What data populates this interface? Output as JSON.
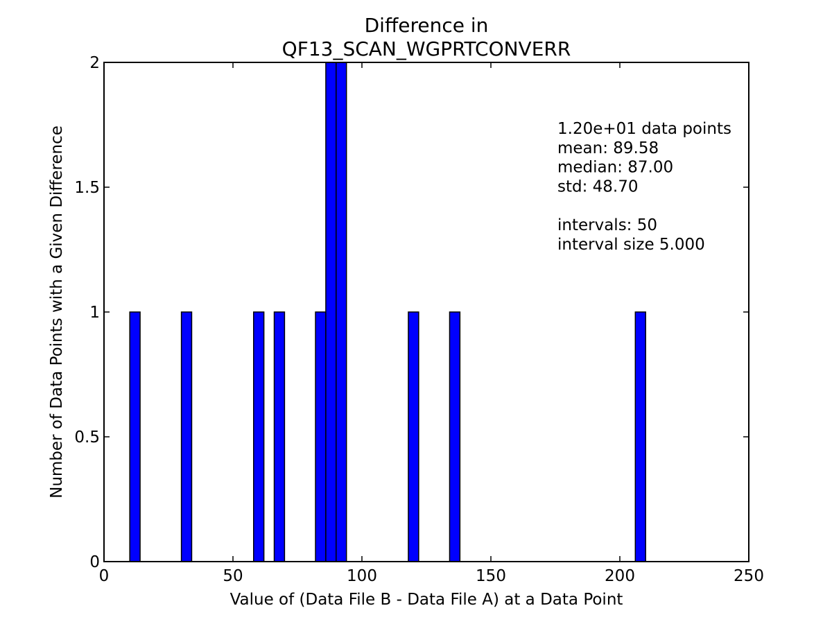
{
  "chart_data": {
    "type": "bar",
    "title_line1": "Difference in",
    "title_line2": "QF13_SCAN_WGPRTCONVERR",
    "xlabel": "Value of (Data File B - Data File A) at a Data Point",
    "ylabel": "Number of Data Points with a Given Difference",
    "xlim": [
      0,
      250
    ],
    "ylim": [
      0,
      2
    ],
    "x_ticks": [
      0,
      50,
      100,
      150,
      200,
      250
    ],
    "x_tick_labels": [
      "0",
      "50",
      "100",
      "150",
      "200",
      "250"
    ],
    "y_ticks": [
      0,
      0.5,
      1,
      1.5,
      2
    ],
    "y_tick_labels": [
      "0",
      "0.5",
      "1",
      "1.5",
      "2"
    ],
    "bar_color": "#0000ff",
    "bars": [
      {
        "x0": 10,
        "x1": 14,
        "value": 1
      },
      {
        "x0": 30,
        "x1": 34,
        "value": 1
      },
      {
        "x0": 58,
        "x1": 62,
        "value": 1
      },
      {
        "x0": 66,
        "x1": 70,
        "value": 1
      },
      {
        "x0": 82,
        "x1": 86,
        "value": 1
      },
      {
        "x0": 86,
        "x1": 90,
        "value": 2
      },
      {
        "x0": 90,
        "x1": 94,
        "value": 2
      },
      {
        "x0": 118,
        "x1": 122,
        "value": 1
      },
      {
        "x0": 134,
        "x1": 138,
        "value": 1
      },
      {
        "x0": 206,
        "x1": 210,
        "value": 1
      }
    ],
    "annotation_lines": [
      "1.20e+01 data points",
      "mean: 89.58",
      "median: 87.00",
      "std: 48.70",
      "",
      "intervals: 50",
      "interval size 5.000"
    ],
    "grid": false
  }
}
